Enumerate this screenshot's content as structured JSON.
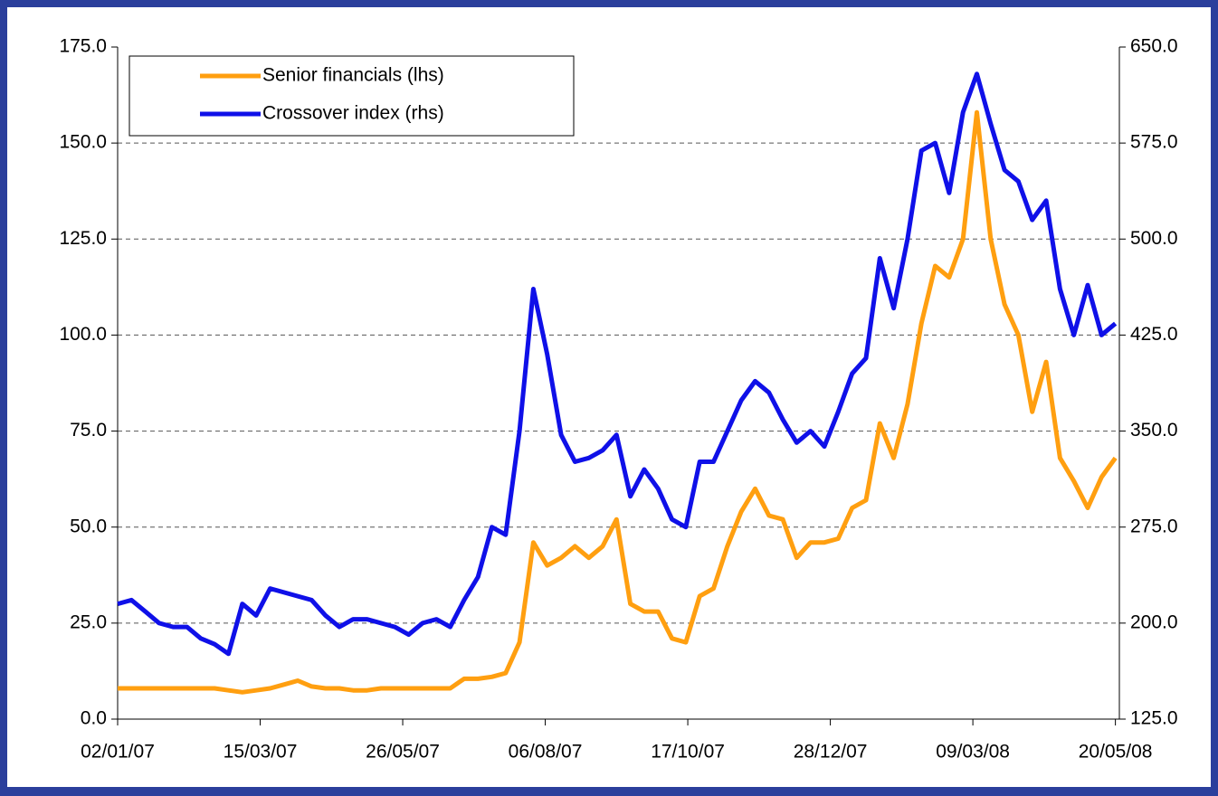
{
  "chart_data": {
    "type": "line",
    "x": [
      "2007-01-02",
      "2007-01-09",
      "2007-01-16",
      "2007-01-23",
      "2007-01-30",
      "2007-02-06",
      "2007-02-13",
      "2007-02-20",
      "2007-02-27",
      "2007-03-06",
      "2007-03-13",
      "2007-03-20",
      "2007-03-27",
      "2007-04-03",
      "2007-04-10",
      "2007-04-17",
      "2007-04-24",
      "2007-05-01",
      "2007-05-08",
      "2007-05-15",
      "2007-05-22",
      "2007-05-29",
      "2007-06-05",
      "2007-06-12",
      "2007-06-19",
      "2007-06-26",
      "2007-07-03",
      "2007-07-10",
      "2007-07-17",
      "2007-07-24",
      "2007-07-31",
      "2007-08-07",
      "2007-08-14",
      "2007-08-21",
      "2007-08-28",
      "2007-09-04",
      "2007-09-11",
      "2007-09-18",
      "2007-09-25",
      "2007-10-02",
      "2007-10-09",
      "2007-10-16",
      "2007-10-23",
      "2007-10-30",
      "2007-11-06",
      "2007-11-13",
      "2007-11-20",
      "2007-11-27",
      "2007-12-04",
      "2007-12-11",
      "2007-12-18",
      "2007-12-25",
      "2008-01-01",
      "2008-01-08",
      "2008-01-15",
      "2008-01-22",
      "2008-01-29",
      "2008-02-05",
      "2008-02-12",
      "2008-02-19",
      "2008-02-26",
      "2008-03-04",
      "2008-03-11",
      "2008-03-18",
      "2008-03-25",
      "2008-04-01",
      "2008-04-08",
      "2008-04-15",
      "2008-04-22",
      "2008-04-29",
      "2008-05-06",
      "2008-05-13",
      "2008-05-20"
    ],
    "series": [
      {
        "name": "Senior financials (lhs)",
        "color": "#ff9f10",
        "values": [
          8,
          8,
          8,
          8,
          8,
          8,
          8,
          8,
          7.5,
          7,
          7.5,
          8,
          9,
          10,
          8.5,
          8,
          8,
          7.5,
          7.5,
          8,
          8,
          8,
          8,
          8,
          8,
          10.5,
          10.5,
          11,
          12,
          20,
          46,
          40,
          42,
          45,
          42,
          45,
          52,
          30,
          28,
          28,
          21,
          20,
          32,
          34,
          45,
          54,
          60,
          53,
          52,
          42,
          46,
          46,
          47,
          55,
          57,
          77,
          68,
          82,
          103,
          118,
          115,
          125,
          158,
          125,
          108,
          100,
          80,
          93,
          68,
          62,
          55,
          63,
          68
        ]
      },
      {
        "name": "Crossover index (rhs)",
        "color": "#0f10e8",
        "axis": "y2",
        "values": [
          215,
          218,
          209,
          200,
          197,
          197,
          188,
          183.5,
          176,
          215,
          206,
          227,
          224,
          221,
          218,
          206,
          197,
          203,
          203,
          200,
          197,
          191,
          200,
          203,
          197,
          218,
          236,
          275,
          269,
          350,
          461,
          410,
          347,
          326,
          329,
          335,
          347,
          299,
          320,
          305,
          281,
          275,
          326,
          326,
          350,
          374,
          389,
          380,
          359,
          341,
          350,
          338,
          365,
          395,
          407,
          485,
          446,
          500,
          569,
          575,
          536,
          599,
          629,
          590,
          554,
          545,
          515,
          530,
          461,
          425,
          464,
          425,
          434
        ]
      }
    ],
    "xlim": [
      "2007-01-02",
      "2008-05-22"
    ],
    "xticks": [
      {
        "value": "2007-01-02",
        "label": "02/01/07"
      },
      {
        "value": "2007-03-15",
        "label": "15/03/07"
      },
      {
        "value": "2007-05-26",
        "label": "26/05/07"
      },
      {
        "value": "2007-08-06",
        "label": "06/08/07"
      },
      {
        "value": "2007-10-17",
        "label": "17/10/07"
      },
      {
        "value": "2007-12-28",
        "label": "28/12/07"
      },
      {
        "value": "2008-03-09",
        "label": "09/03/08"
      },
      {
        "value": "2008-05-20",
        "label": "20/05/08"
      }
    ],
    "ylim": [
      0,
      175
    ],
    "yticks": [
      {
        "value": 0,
        "label": "0.0"
      },
      {
        "value": 25,
        "label": "25.0"
      },
      {
        "value": 50,
        "label": "50.0"
      },
      {
        "value": 75,
        "label": "75.0"
      },
      {
        "value": 100,
        "label": "100.0"
      },
      {
        "value": 125,
        "label": "125.0"
      },
      {
        "value": 150,
        "label": "150.0"
      },
      {
        "value": 175,
        "label": "175.0"
      }
    ],
    "y2lim": [
      125,
      650
    ],
    "y2ticks": [
      {
        "value": 125,
        "label": "125.0"
      },
      {
        "value": 200,
        "label": "200.0"
      },
      {
        "value": 275,
        "label": "275.0"
      },
      {
        "value": 350,
        "label": "350.0"
      },
      {
        "value": 425,
        "label": "425.0"
      },
      {
        "value": 500,
        "label": "500.0"
      },
      {
        "value": 575,
        "label": "575.0"
      },
      {
        "value": 650,
        "label": "650.0"
      }
    ],
    "grid": true,
    "legend": "upper left"
  }
}
